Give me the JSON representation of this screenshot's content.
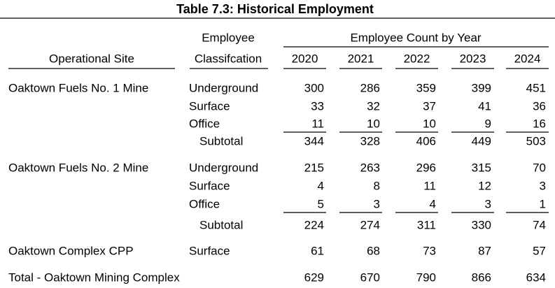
{
  "title": "Table 7.3: Historical Employment",
  "header": {
    "site": "Operational Site",
    "classification_top": "Employee",
    "classification_bottom": "Classifcation",
    "group": "Employee Count by Year",
    "years": [
      2020,
      2021,
      2022,
      2023,
      2024
    ]
  },
  "sections": [
    {
      "site": "Oaktown Fuels No. 1 Mine",
      "rows": [
        {
          "label": "Underground",
          "values": [
            300,
            286,
            359,
            399,
            451
          ]
        },
        {
          "label": "Surface",
          "values": [
            33,
            32,
            37,
            41,
            36
          ]
        },
        {
          "label": "Office",
          "values": [
            11,
            10,
            10,
            9,
            16
          ]
        }
      ],
      "subtotal": {
        "label": "Subtotal",
        "values": [
          344,
          328,
          406,
          449,
          503
        ]
      }
    },
    {
      "site": "Oaktown Fuels No. 2 Mine",
      "rows": [
        {
          "label": "Underground",
          "values": [
            215,
            263,
            296,
            315,
            70
          ]
        },
        {
          "label": "Surface",
          "values": [
            4,
            8,
            11,
            12,
            3
          ]
        },
        {
          "label": "Office",
          "values": [
            5,
            3,
            4,
            3,
            1
          ]
        }
      ],
      "subtotal": {
        "label": "Subtotal",
        "values": [
          224,
          274,
          311,
          330,
          74
        ]
      }
    },
    {
      "site": "Oaktown Complex CPP",
      "rows": [
        {
          "label": "Surface",
          "values": [
            61,
            68,
            73,
            87,
            57
          ]
        }
      ]
    }
  ],
  "total": {
    "label": "Total - Oaktown Mining Complex",
    "values": [
      629,
      670,
      790,
      866,
      634
    ]
  }
}
